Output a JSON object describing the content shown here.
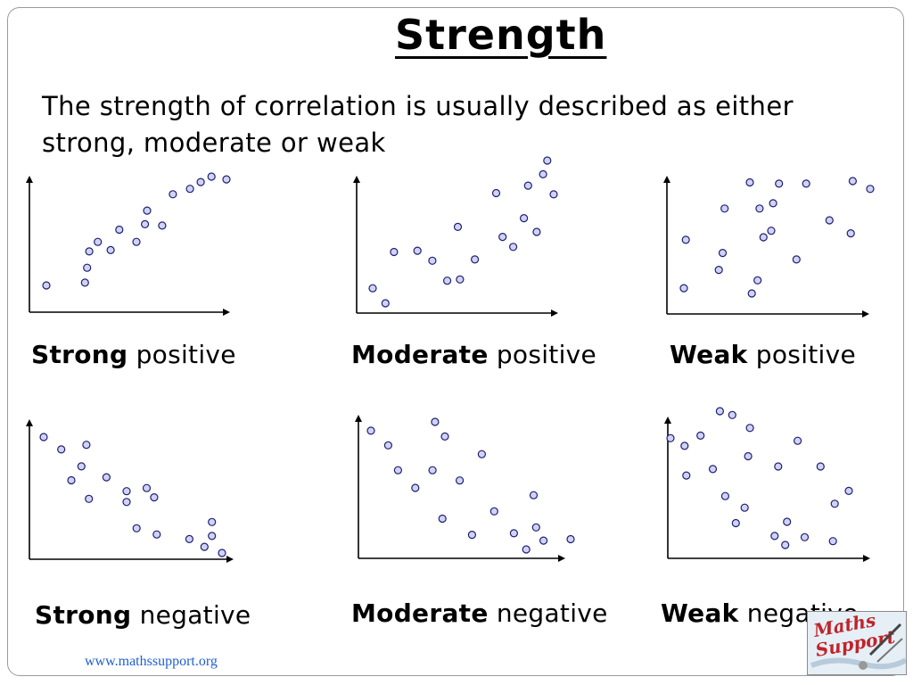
{
  "title": "Strength",
  "intro": "The strength of correlation is usually described as either strong, moderate or weak",
  "footer": "www.mathssupport.org",
  "logo": {
    "line1": "Maths",
    "line2": "Support"
  },
  "colors": {
    "point_fill": "#cfd3f7",
    "point_stroke": "#1f1f6e",
    "axis": "#000000",
    "link": "#1f5fd0"
  },
  "chart_data": [
    {
      "type": "scatter",
      "strength_word": "Strong",
      "direction_word": "positive",
      "axes_ticks": "none",
      "x": [
        1,
        19,
        20,
        21,
        25,
        31,
        35,
        43,
        47,
        48,
        55,
        60,
        68,
        73,
        78,
        85
      ],
      "y": [
        20,
        22,
        33,
        45,
        52,
        46,
        61,
        52,
        65,
        75,
        64,
        87,
        91,
        96,
        100,
        98
      ]
    },
    {
      "type": "scatter",
      "strength_word": "Moderate",
      "direction_word": "positive",
      "axes_ticks": "none",
      "x": [
        5,
        11,
        15,
        26,
        33,
        40,
        45,
        46,
        53,
        63,
        66,
        71,
        76,
        78,
        82,
        85,
        87,
        90
      ],
      "y": [
        18,
        6,
        47,
        48,
        40,
        24,
        67,
        25,
        41,
        94,
        59,
        51,
        74,
        100,
        63,
        109,
        120,
        93
      ]
    },
    {
      "type": "scatter",
      "strength_word": "Weak",
      "direction_word": "positive",
      "axes_ticks": "none",
      "x": [
        3,
        4,
        21,
        23,
        24,
        38,
        37,
        41,
        42,
        44,
        48,
        49,
        52,
        61,
        66,
        78,
        90,
        89,
        99
      ],
      "y": [
        17,
        54,
        31,
        44,
        78,
        13,
        98,
        23,
        78,
        56,
        61,
        82,
        97,
        39,
        97,
        69,
        99,
        59,
        93
      ]
    },
    {
      "type": "scatter",
      "strength_word": "Strong",
      "direction_word": "negative",
      "axes_ticks": "none",
      "x": [
        12,
        19,
        23,
        27,
        30,
        29,
        37,
        45,
        45,
        49,
        53,
        56,
        57,
        70,
        76,
        79,
        79,
        83
      ],
      "y": [
        91,
        83,
        63,
        72,
        51,
        86,
        65,
        56,
        49,
        32,
        58,
        52,
        28,
        25,
        20,
        36,
        27,
        16
      ]
    },
    {
      "type": "scatter",
      "strength_word": "Moderate",
      "direction_word": "negative",
      "axes_ticks": "none",
      "x": [
        14,
        21,
        25,
        32,
        39,
        40,
        43,
        44,
        50,
        55,
        59,
        64,
        72,
        77,
        80,
        81,
        84,
        95
      ],
      "y": [
        91,
        81,
        64,
        52,
        64,
        97,
        31,
        87,
        57,
        20,
        75,
        36,
        21,
        10,
        47,
        25,
        16,
        17
      ]
    },
    {
      "type": "scatter",
      "strength_word": "Weak",
      "direction_word": "negative",
      "axes_ticks": "none",
      "x": [
        5,
        13,
        14,
        22,
        29,
        33,
        36,
        40,
        42,
        47,
        49,
        50,
        64,
        66,
        70,
        71,
        77,
        81,
        90,
        97,
        98,
        106
      ],
      "y": [
        88,
        82,
        59,
        90,
        64,
        109,
        43,
        106,
        22,
        34,
        74,
        96,
        12,
        66,
        5,
        23,
        86,
        11,
        66,
        8,
        37,
        47
      ]
    }
  ]
}
